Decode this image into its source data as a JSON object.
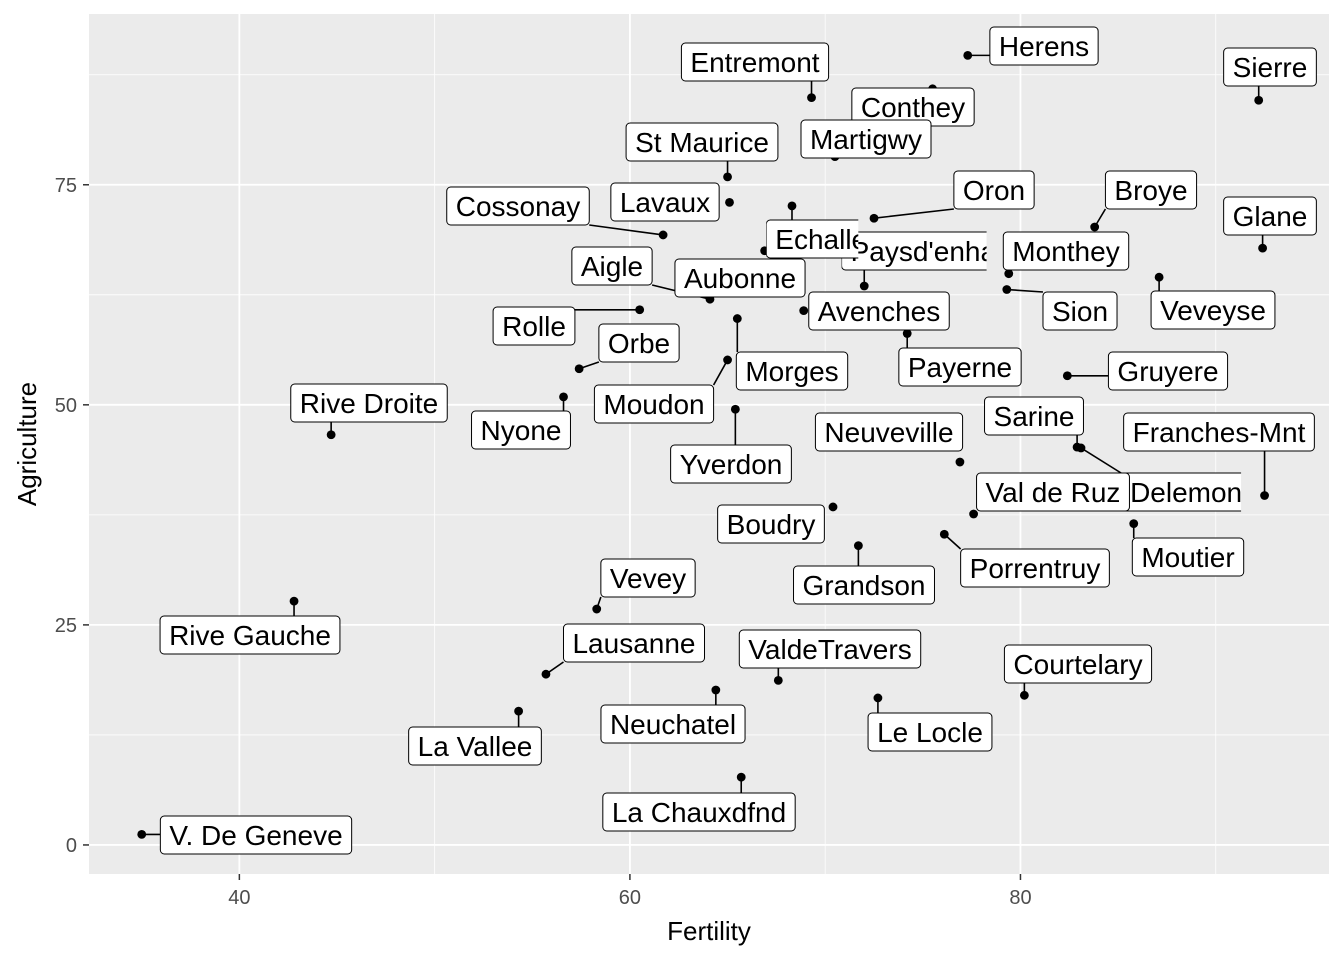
{
  "chart_data": {
    "type": "scatter",
    "title": "",
    "xlabel": "Fertility",
    "ylabel": "Agriculture",
    "xlim": [
      32.3,
      95.8
    ],
    "ylim": [
      -3.3,
      94.4
    ],
    "x_ticks": [
      40,
      60,
      80
    ],
    "y_ticks": [
      0,
      25,
      50,
      75
    ],
    "grid": true,
    "legend": "none",
    "colors": {
      "panel": "#ebebeb",
      "grid_major": "#ffffff",
      "point": "#000000",
      "label_fill": "#ffffff",
      "label_border": "#000000"
    },
    "points": [
      {
        "name": "Courtelary",
        "x": 80.2,
        "y": 17.0
      },
      {
        "name": "Delemont",
        "x": 83.1,
        "y": 45.1
      },
      {
        "name": "Franches-Mnt",
        "x": 92.5,
        "y": 39.7
      },
      {
        "name": "Moutier",
        "x": 85.8,
        "y": 36.5
      },
      {
        "name": "Neuveville",
        "x": 76.9,
        "y": 43.5
      },
      {
        "name": "Porrentruy",
        "x": 76.1,
        "y": 35.3
      },
      {
        "name": "Broye",
        "x": 83.8,
        "y": 70.2
      },
      {
        "name": "Glane",
        "x": 92.4,
        "y": 67.8
      },
      {
        "name": "Gruyere",
        "x": 82.4,
        "y": 53.3
      },
      {
        "name": "Sarine",
        "x": 82.9,
        "y": 45.2
      },
      {
        "name": "Veveyse",
        "x": 87.1,
        "y": 64.5
      },
      {
        "name": "Aigle",
        "x": 64.1,
        "y": 62.0
      },
      {
        "name": "Aubonne",
        "x": 66.9,
        "y": 67.5
      },
      {
        "name": "Avenches",
        "x": 68.9,
        "y": 60.7
      },
      {
        "name": "Cossonay",
        "x": 61.7,
        "y": 69.3
      },
      {
        "name": "Echallens",
        "x": 68.3,
        "y": 72.6
      },
      {
        "name": "Grandson",
        "x": 71.7,
        "y": 34.0
      },
      {
        "name": "Lausanne",
        "x": 55.7,
        "y": 19.4
      },
      {
        "name": "La Vallee",
        "x": 54.3,
        "y": 15.2
      },
      {
        "name": "Lavaux",
        "x": 65.1,
        "y": 73.0
      },
      {
        "name": "Morges",
        "x": 65.5,
        "y": 59.8
      },
      {
        "name": "Moudon",
        "x": 65.0,
        "y": 55.1
      },
      {
        "name": "Nyone",
        "x": 56.6,
        "y": 50.9
      },
      {
        "name": "Orbe",
        "x": 57.4,
        "y": 54.1
      },
      {
        "name": "Oron",
        "x": 72.5,
        "y": 71.2
      },
      {
        "name": "Payerne",
        "x": 74.2,
        "y": 58.1
      },
      {
        "name": "Paysd'enhaut",
        "x": 72.0,
        "y": 63.5
      },
      {
        "name": "Rolle",
        "x": 60.5,
        "y": 60.8
      },
      {
        "name": "Vevey",
        "x": 58.3,
        "y": 26.8
      },
      {
        "name": "Yverdon",
        "x": 65.4,
        "y": 49.5
      },
      {
        "name": "Conthey",
        "x": 75.5,
        "y": 85.9
      },
      {
        "name": "Entremont",
        "x": 69.3,
        "y": 84.9
      },
      {
        "name": "Herens",
        "x": 77.3,
        "y": 89.7
      },
      {
        "name": "Martigwy",
        "x": 70.5,
        "y": 78.2
      },
      {
        "name": "Monthey",
        "x": 79.4,
        "y": 64.9
      },
      {
        "name": "St Maurice",
        "x": 65.0,
        "y": 75.9
      },
      {
        "name": "Sierre",
        "x": 92.2,
        "y": 84.6
      },
      {
        "name": "Sion",
        "x": 79.3,
        "y": 63.1
      },
      {
        "name": "Boudry",
        "x": 70.4,
        "y": 38.4
      },
      {
        "name": "La Chauxdfnd",
        "x": 65.7,
        "y": 7.7
      },
      {
        "name": "Le Locle",
        "x": 72.7,
        "y": 16.7
      },
      {
        "name": "Neuchatel",
        "x": 64.4,
        "y": 17.6
      },
      {
        "name": "Val de Ruz",
        "x": 77.6,
        "y": 37.6
      },
      {
        "name": "ValdeTravers",
        "x": 67.6,
        "y": 18.7
      },
      {
        "name": "V. De Geneve",
        "x": 35.0,
        "y": 1.2
      },
      {
        "name": "Rive Droite",
        "x": 44.7,
        "y": 46.6
      },
      {
        "name": "Rive Gauche",
        "x": 42.8,
        "y": 27.7
      }
    ]
  }
}
